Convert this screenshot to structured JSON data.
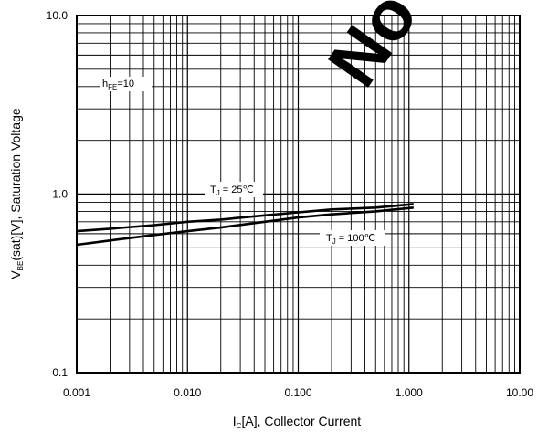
{
  "chart_data": {
    "type": "line",
    "xlabel": {
      "main": "I",
      "sub": "C",
      "rest": "[A], Collector Current"
    },
    "ylabel": {
      "main": "V",
      "sub": "BE",
      "rest": "(sat)[V], Saturation Voltage"
    },
    "x_scale": "log",
    "y_scale": "log",
    "xlim": [
      0.001,
      10
    ],
    "ylim": [
      0.1,
      10
    ],
    "x_tick_labels": [
      "0.001",
      "0.010",
      "0.100",
      "1.000",
      "10.00"
    ],
    "y_tick_labels": [
      "0.1",
      "1.0",
      "10.0"
    ],
    "grid": true,
    "annotations": [
      {
        "id": "hfe",
        "main": "h",
        "sub": "FE",
        "rest": "=10"
      },
      {
        "id": "t25",
        "main": "T",
        "sub": "J",
        "rest": " = 25℃"
      },
      {
        "id": "t100",
        "main": "T",
        "sub": "J",
        "rest": " = 100℃"
      }
    ],
    "series": [
      {
        "x": [
          0.001,
          0.002,
          0.005,
          0.01,
          0.02,
          0.05,
          0.1,
          0.2,
          0.5,
          1.1
        ],
        "values": [
          0.62,
          0.64,
          0.67,
          0.7,
          0.72,
          0.76,
          0.79,
          0.82,
          0.84,
          0.88
        ]
      },
      {
        "x": [
          0.001,
          0.002,
          0.005,
          0.01,
          0.02,
          0.05,
          0.1,
          0.2,
          0.5,
          1.1
        ],
        "values": [
          0.52,
          0.55,
          0.59,
          0.62,
          0.65,
          0.7,
          0.74,
          0.77,
          0.8,
          0.84
        ]
      }
    ],
    "watermark": "No"
  }
}
